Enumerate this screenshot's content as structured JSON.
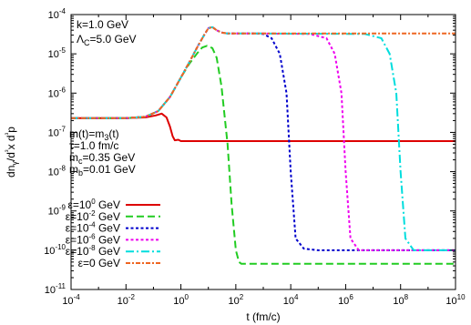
{
  "chart_data": {
    "type": "line",
    "title": "",
    "xlabel": "t (fm/c)",
    "ylabel": "dnγ/d³x d³p",
    "xscale": "log",
    "yscale": "log",
    "xlim": [
      0.0001,
      10000000000
    ],
    "ylim": [
      1e-11,
      0.0001
    ],
    "x_ticks": [
      {
        "base": "10",
        "exp": "-4"
      },
      {
        "base": "10",
        "exp": "-2"
      },
      {
        "base": "10",
        "exp": "0"
      },
      {
        "base": "10",
        "exp": "2"
      },
      {
        "base": "10",
        "exp": "4"
      },
      {
        "base": "10",
        "exp": "6"
      },
      {
        "base": "10",
        "exp": "8"
      },
      {
        "base": "10",
        "exp": "10"
      }
    ],
    "y_ticks": [
      {
        "base": "10",
        "exp": "-11"
      },
      {
        "base": "10",
        "exp": "-10"
      },
      {
        "base": "10",
        "exp": "-9"
      },
      {
        "base": "10",
        "exp": "-8"
      },
      {
        "base": "10",
        "exp": "-7"
      },
      {
        "base": "10",
        "exp": "-6"
      },
      {
        "base": "10",
        "exp": "-5"
      },
      {
        "base": "10",
        "exp": "-4"
      }
    ],
    "annotations_top": [
      {
        "text": "k=1.0 GeV"
      },
      {
        "text": "ΛC=5.0 GeV"
      }
    ],
    "annotations_mid": [
      {
        "text": "m(t)=m3(t)"
      },
      {
        "text": "τ=1.0 fm/c"
      },
      {
        "text": "mc=0.35 GeV"
      },
      {
        "text": "mb=0.01 GeV"
      }
    ],
    "legend_position": "bottom-left",
    "grid": false,
    "series": [
      {
        "name": "ε=10⁰ GeV",
        "label_base": "ε=10",
        "label_exp": "0",
        "label_unit": " GeV",
        "color": "#dd0000",
        "dash": "solid",
        "x": [
          0.0001,
          0.01,
          0.05,
          0.12,
          0.2,
          0.3,
          0.4,
          0.5,
          0.6,
          0.8,
          1,
          10000000000
        ],
        "y": [
          2.3e-07,
          2.3e-07,
          2.4e-07,
          2.7e-07,
          3e-07,
          2.4e-07,
          1.4e-07,
          8e-08,
          6.3e-08,
          6.5e-08,
          6e-08,
          6e-08
        ]
      },
      {
        "name": "ε=10⁻² GeV",
        "label_base": "ε=10",
        "label_exp": "-2",
        "label_unit": " GeV",
        "color": "#22cc22",
        "dash": "dashed",
        "x": [
          0.0001,
          0.01,
          0.05,
          0.15,
          0.4,
          1,
          2,
          4,
          6,
          9,
          14,
          20,
          30,
          50,
          70,
          100,
          130,
          160,
          200,
          10000000000
        ],
        "y": [
          2.3e-07,
          2.3e-07,
          2.5e-07,
          3.5e-07,
          8e-07,
          2.5e-06,
          5.5e-06,
          1.05e-05,
          1.45e-05,
          1.6e-05,
          1.4e-05,
          8e-06,
          1.5e-06,
          5e-08,
          1.5e-09,
          1e-10,
          5e-11,
          4.5e-11,
          4.5e-11,
          4.5e-11
        ]
      },
      {
        "name": "ε=10⁻⁴ GeV",
        "label_base": "ε=10",
        "label_exp": "-4",
        "label_unit": " GeV",
        "color": "#0000cc",
        "dash": "dotted",
        "x": [
          0.0001,
          0.01,
          0.05,
          0.15,
          0.4,
          1,
          2,
          4,
          7,
          10,
          14,
          20,
          30,
          50,
          100,
          500,
          1000,
          2000,
          4000,
          7000,
          10000,
          15000,
          30000,
          100000,
          10000000000
        ],
        "y": [
          2.3e-07,
          2.3e-07,
          2.5e-07,
          3.5e-07,
          8e-07,
          2.5e-06,
          6e-06,
          1.5e-05,
          3e-05,
          4.5e-05,
          4.8e-05,
          4e-05,
          3.5e-05,
          3.3e-05,
          3.3e-05,
          3.3e-05,
          3.2e-05,
          2.5e-05,
          1e-05,
          1e-06,
          1e-08,
          2e-10,
          1.1e-10,
          1e-10,
          1e-10
        ]
      },
      {
        "name": "ε=10⁻⁶ GeV",
        "label_base": "ε=10",
        "label_exp": "-6",
        "label_unit": " GeV",
        "color": "#ee00ee",
        "dash": "dotted",
        "x": [
          0.0001,
          0.01,
          0.05,
          0.15,
          0.4,
          1,
          2,
          4,
          7,
          10,
          14,
          20,
          30,
          50,
          100,
          1000,
          50000,
          200000,
          400000,
          700000,
          1000000,
          1500000,
          3000000,
          10000000000
        ],
        "y": [
          2.3e-07,
          2.3e-07,
          2.5e-07,
          3.5e-07,
          8e-07,
          2.5e-06,
          6e-06,
          1.5e-05,
          3e-05,
          4.5e-05,
          4.8e-05,
          4e-05,
          3.5e-05,
          3.3e-05,
          3.3e-05,
          3.3e-05,
          3.2e-05,
          2.5e-05,
          1e-05,
          1e-06,
          1e-08,
          2e-10,
          1e-10,
          1e-10
        ]
      },
      {
        "name": "ε=10⁻⁸ GeV",
        "label_base": "ε=10",
        "label_exp": "-8",
        "label_unit": " GeV",
        "color": "#00dddd",
        "dash": "dashdot",
        "x": [
          0.0001,
          0.01,
          0.05,
          0.15,
          0.4,
          1,
          2,
          4,
          7,
          10,
          14,
          20,
          30,
          50,
          100,
          1000,
          5000000,
          20000000,
          40000000,
          70000000,
          100000000,
          150000000,
          300000000,
          10000000000
        ],
        "y": [
          2.3e-07,
          2.3e-07,
          2.5e-07,
          3.5e-07,
          8e-07,
          2.5e-06,
          6e-06,
          1.5e-05,
          3e-05,
          4.5e-05,
          4.8e-05,
          4e-05,
          3.5e-05,
          3.3e-05,
          3.3e-05,
          3.3e-05,
          3.2e-05,
          2.5e-05,
          1e-05,
          1e-06,
          1e-08,
          2e-10,
          1e-10,
          1e-10
        ]
      },
      {
        "name": "ε=0   GeV",
        "label_base": "ε=0   GeV",
        "label_exp": "",
        "label_unit": "",
        "color": "#ee6622",
        "dash": "dashdot2",
        "x": [
          0.0001,
          0.01,
          0.05,
          0.15,
          0.4,
          1,
          2,
          4,
          7,
          10,
          14,
          20,
          30,
          50,
          100,
          10000000000
        ],
        "y": [
          2.3e-07,
          2.3e-07,
          2.5e-07,
          3.5e-07,
          8e-07,
          2.5e-06,
          6e-06,
          1.5e-05,
          3e-05,
          4.5e-05,
          4.8e-05,
          4e-05,
          3.5e-05,
          3.3e-05,
          3.3e-05,
          3.3e-05
        ]
      }
    ]
  }
}
